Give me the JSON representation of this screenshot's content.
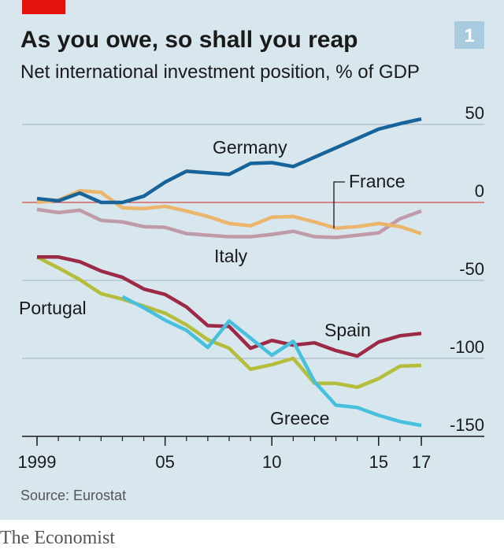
{
  "chart_data": {
    "type": "line",
    "title": "As you owe, so shall you reap",
    "subtitle": "Net international investment position, % of GDP",
    "chart_number": "1",
    "source": "Source: Eurostat",
    "publisher": "The Economist",
    "x": [
      1999,
      2000,
      2001,
      2002,
      2003,
      2004,
      2005,
      2006,
      2007,
      2008,
      2009,
      2010,
      2011,
      2012,
      2013,
      2014,
      2015,
      2016,
      2017
    ],
    "xlim": [
      1999,
      2017
    ],
    "xticks": [
      1999,
      {
        "value": 2005,
        "label": "05"
      },
      {
        "value": 2010,
        "label": "10"
      },
      {
        "value": 2015,
        "label": "15"
      },
      {
        "value": 2017,
        "label": "17"
      }
    ],
    "ylim": [
      -150,
      50
    ],
    "yticks": [
      50,
      0,
      -50,
      -100,
      -150
    ],
    "grid": true,
    "series": [
      {
        "name": "Germany",
        "color": "#17649a",
        "values": [
          2.5,
          1,
          6,
          0,
          0,
          4,
          13,
          20,
          19,
          18,
          25,
          25.5,
          23,
          29,
          35,
          41,
          47,
          50.5,
          53.5
        ]
      },
      {
        "name": "France",
        "color": "#ebb56b",
        "values": [
          0,
          1.5,
          7.5,
          6.5,
          -3.5,
          -4,
          -2.5,
          -5.5,
          -9,
          -13.5,
          -15,
          -9.5,
          -9,
          -12.5,
          -16.5,
          -15.5,
          -13.5,
          -15.5,
          -20
        ]
      },
      {
        "name": "Italy",
        "color": "#bf9aa8",
        "values": [
          -4.5,
          -6.5,
          -5,
          -11.5,
          -12.5,
          -15.5,
          -16,
          -20,
          -21,
          -22,
          -22,
          -20.5,
          -18.5,
          -22,
          -22.5,
          -21,
          -19.5,
          -10.5,
          -5.5
        ]
      },
      {
        "name": "Spain",
        "color": "#9c2a46",
        "values": [
          -35,
          -35,
          -38,
          -44,
          -48,
          -55.5,
          -59,
          -67,
          -79,
          -79.5,
          -93.5,
          -88.5,
          -91.5,
          -90,
          -95,
          -98.5,
          -89.5,
          -85.5,
          -84
        ]
      },
      {
        "name": "Portugal",
        "color": "#b4be3a",
        "values": [
          -35,
          -42,
          -49.5,
          -58.5,
          -62,
          -66.5,
          -71,
          -78.5,
          -88,
          -93.5,
          -107,
          -104,
          -100,
          -116,
          -116,
          -118.5,
          -113,
          -105,
          -104.5
        ]
      },
      {
        "name": "Greece",
        "color": "#46c0dc",
        "values": [
          null,
          null,
          null,
          null,
          -60.5,
          -67.5,
          -75.5,
          -82,
          -93,
          -76,
          -87,
          -98,
          -89,
          -115,
          -130,
          -131.5,
          -136.5,
          -140.5,
          -143
        ]
      }
    ]
  }
}
